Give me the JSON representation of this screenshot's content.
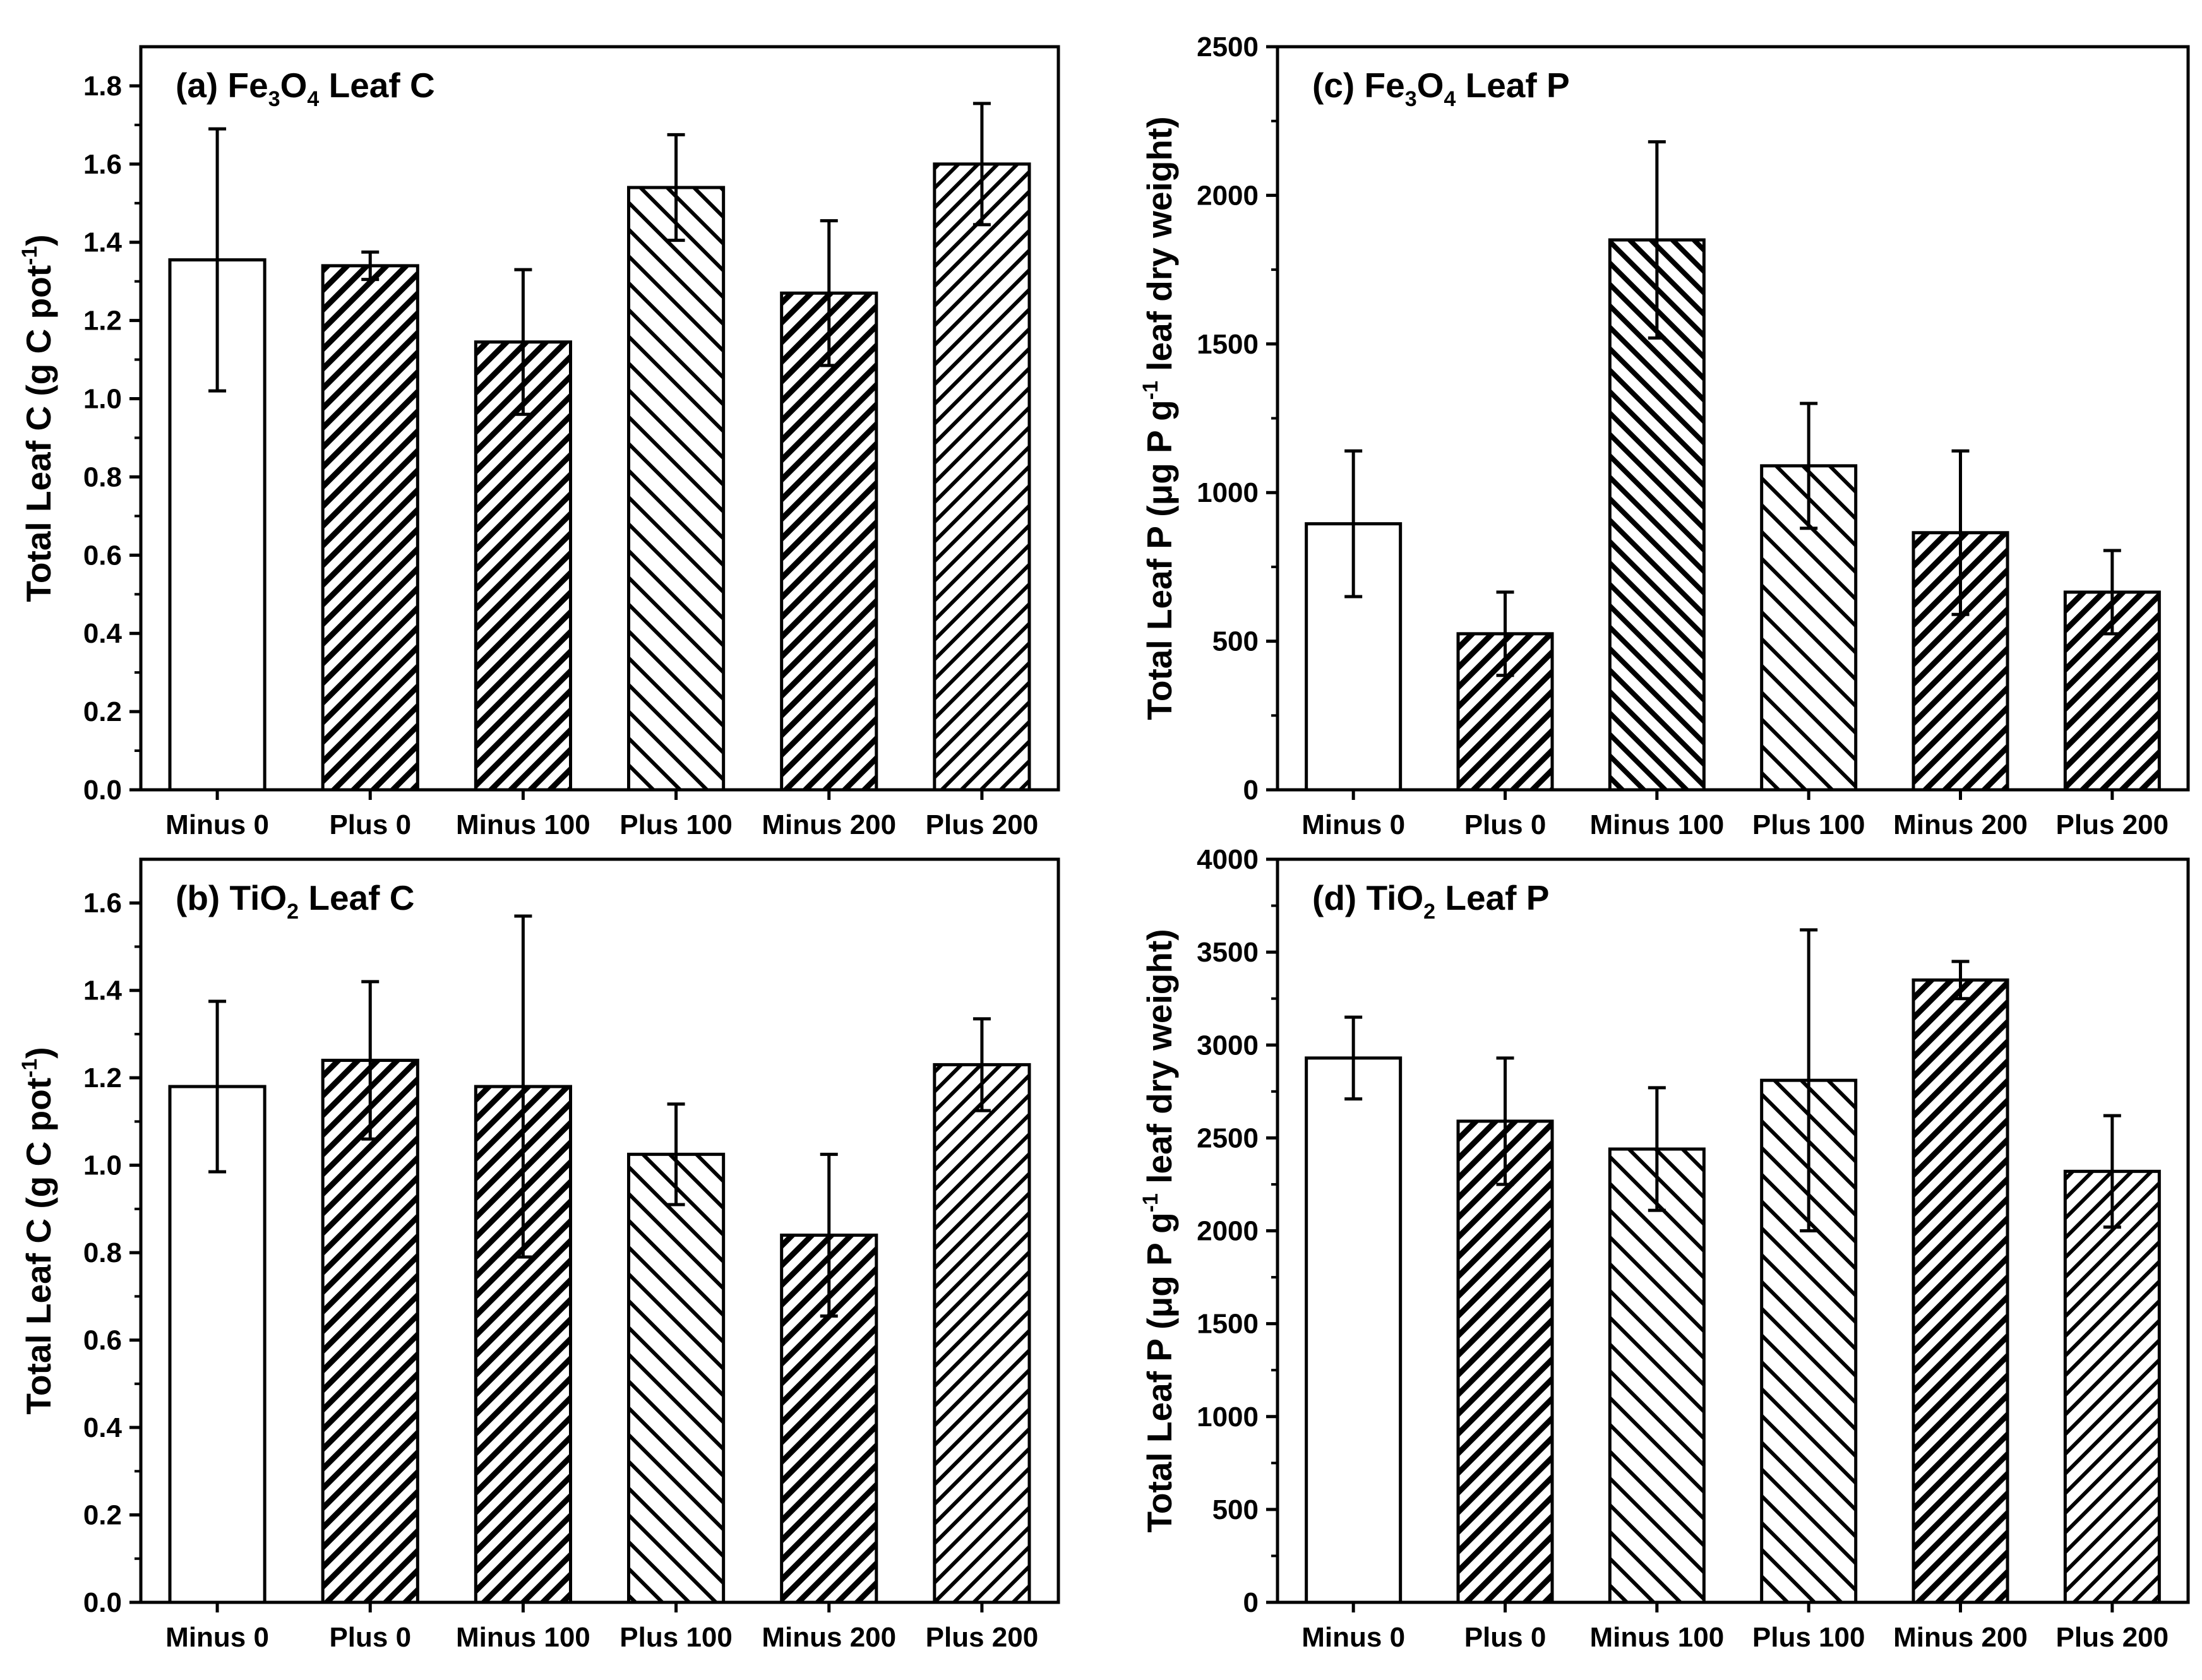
{
  "chart_data": [
    {
      "id": "a",
      "type": "bar",
      "title": {
        "pre": "(a) Fe",
        "sub1": "3",
        "mid": "O",
        "sub2": "4",
        "post": " Leaf C"
      },
      "ylabel": {
        "text": "Total Leaf C (g C pot",
        "sup": "-1",
        "close": ")"
      },
      "categories": [
        "Minus 0",
        "Plus 0",
        "Minus 100",
        "Plus 100",
        "Minus 200",
        "Plus 200"
      ],
      "values": [
        1.355,
        1.34,
        1.145,
        1.54,
        1.27,
        1.6
      ],
      "errors": [
        0.335,
        0.035,
        0.185,
        0.135,
        0.185,
        0.155
      ],
      "ylim": [
        0,
        1.9
      ],
      "yticks": [
        0.0,
        0.2,
        0.4,
        0.6,
        0.8,
        1.0,
        1.2,
        1.4,
        1.6,
        1.8
      ],
      "tick_decimals": 1,
      "patterns": [
        "none",
        "back-dense",
        "back-dense",
        "fwd-sparse",
        "back-dense",
        "back-sparse"
      ]
    },
    {
      "id": "b",
      "type": "bar",
      "title": {
        "pre": "(b) TiO",
        "sub1": "2",
        "mid": "",
        "sub2": "",
        "post": " Leaf C"
      },
      "ylabel": {
        "text": "Total Leaf C (g C pot",
        "sup": "-1",
        "close": ")"
      },
      "categories": [
        "Minus 0",
        "Plus 0",
        "Minus 100",
        "Plus 100",
        "Minus 200",
        "Plus 200"
      ],
      "values": [
        1.18,
        1.24,
        1.18,
        1.025,
        0.84,
        1.23
      ],
      "errors": [
        0.195,
        0.18,
        0.39,
        0.115,
        0.185,
        0.105
      ],
      "ylim": [
        0,
        1.7
      ],
      "yticks": [
        0.0,
        0.2,
        0.4,
        0.6,
        0.8,
        1.0,
        1.2,
        1.4,
        1.6
      ],
      "tick_decimals": 1,
      "patterns": [
        "none",
        "back-dense",
        "back-dense",
        "fwd-sparse",
        "back-dense",
        "back-sparse"
      ]
    },
    {
      "id": "c",
      "type": "bar",
      "title": {
        "pre": "(c) Fe",
        "sub1": "3",
        "mid": "O",
        "sub2": "4",
        "post": " Leaf P"
      },
      "ylabel": {
        "text": "Total Leaf P  (μg P g",
        "sup": "-1",
        "close": " leaf dry weight)"
      },
      "categories": [
        "Minus 0",
        "Plus 0",
        "Minus 100",
        "Plus 100",
        "Minus 200",
        "Plus 200"
      ],
      "values": [
        895,
        525,
        1850,
        1090,
        865,
        665
      ],
      "errors": [
        245,
        140,
        330,
        210,
        275,
        140
      ],
      "ylim": [
        0,
        2500
      ],
      "yticks": [
        0,
        500,
        1000,
        1500,
        2000,
        2500
      ],
      "tick_decimals": 0,
      "patterns": [
        "none",
        "back-dense",
        "fwd-dense",
        "fwd-sparse",
        "back-dense",
        "back-dense"
      ]
    },
    {
      "id": "d",
      "type": "bar",
      "title": {
        "pre": "(d) TiO",
        "sub1": "2",
        "mid": "",
        "sub2": "",
        "post": " Leaf P"
      },
      "ylabel": {
        "text": "Total Leaf P  (μg P g",
        "sup": "-1",
        "close": " leaf dry weight)"
      },
      "categories": [
        "Minus 0",
        "Plus 0",
        "Minus 100",
        "Plus 100",
        "Minus 200",
        "Plus 200"
      ],
      "values": [
        2930,
        2590,
        2440,
        2810,
        3350,
        2320
      ],
      "errors": [
        220,
        340,
        330,
        810,
        100,
        300
      ],
      "ylim": [
        0,
        4000
      ],
      "yticks": [
        0,
        500,
        1000,
        1500,
        2000,
        2500,
        3000,
        3500,
        4000
      ],
      "tick_decimals": 0,
      "patterns": [
        "none",
        "back-dense",
        "fwd-sparse",
        "fwd-sparse",
        "back-dense",
        "back-sparse"
      ]
    }
  ]
}
